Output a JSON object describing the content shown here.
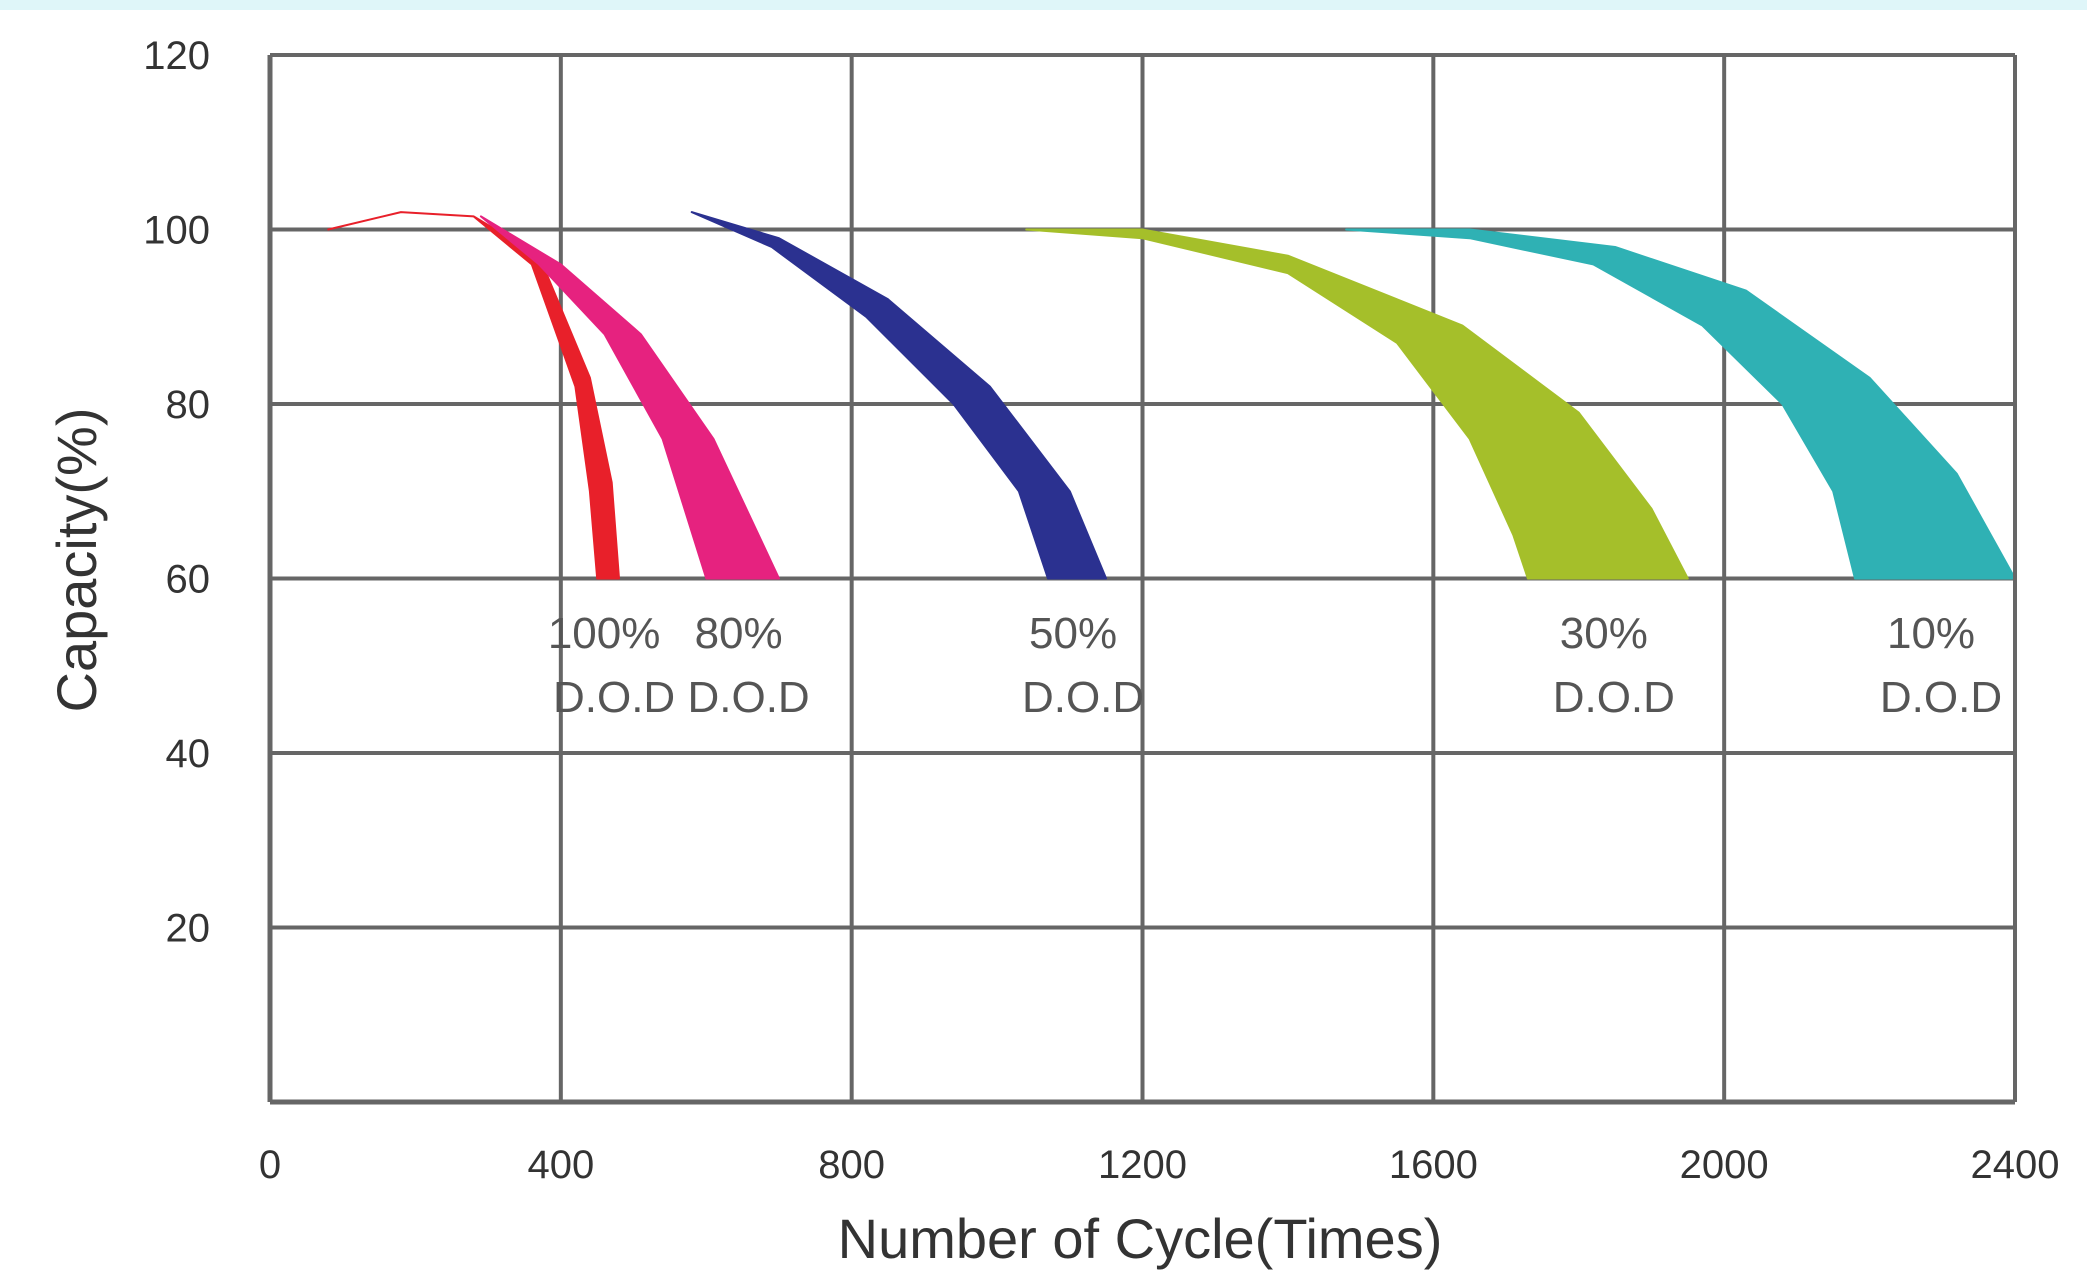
{
  "chart_data": {
    "type": "area",
    "title": "",
    "xlabel": "Number of Cycle(Times)",
    "ylabel": "Capacity(%)",
    "xlim": [
      0,
      2400
    ],
    "ylim": [
      0,
      120
    ],
    "x_ticks": [
      "0",
      "400",
      "800",
      "1200",
      "1600",
      "2000",
      "2400"
    ],
    "y_ticks": [
      "20",
      "40",
      "60",
      "80",
      "100",
      "120"
    ],
    "grid": true,
    "series": [
      {
        "name": "100% D.O.D",
        "line1": "100%",
        "line2": "D.O.D",
        "color": "#e8202a",
        "inner": [
          [
            80,
            100
          ],
          [
            180,
            102
          ],
          [
            280,
            101.5
          ],
          [
            360,
            96
          ],
          [
            420,
            82
          ],
          [
            440,
            70
          ],
          [
            450,
            60
          ]
        ],
        "outer": [
          [
            80,
            100
          ],
          [
            180,
            102
          ],
          [
            280,
            101.5
          ],
          [
            370,
            97
          ],
          [
            440,
            83
          ],
          [
            470,
            71
          ],
          [
            480,
            60
          ]
        ]
      },
      {
        "name": "80% D.O.D",
        "line1": "80%",
        "line2": "D.O.D",
        "color": "#e6227f",
        "inner": [
          [
            290,
            101.5
          ],
          [
            370,
            96
          ],
          [
            460,
            88
          ],
          [
            540,
            76
          ],
          [
            600,
            60
          ]
        ],
        "outer": [
          [
            290,
            101.5
          ],
          [
            400,
            96
          ],
          [
            510,
            88
          ],
          [
            610,
            76
          ],
          [
            700,
            60
          ]
        ]
      },
      {
        "name": "50% D.O.D",
        "line1": "50%",
        "line2": "D.O.D",
        "color": "#2b3190",
        "inner": [
          [
            580,
            102
          ],
          [
            690,
            98
          ],
          [
            820,
            90
          ],
          [
            940,
            80
          ],
          [
            1030,
            70
          ],
          [
            1070,
            60
          ]
        ],
        "outer": [
          [
            580,
            102
          ],
          [
            700,
            99
          ],
          [
            850,
            92
          ],
          [
            990,
            82
          ],
          [
            1100,
            70
          ],
          [
            1150,
            60
          ]
        ]
      },
      {
        "name": "30% D.O.D",
        "line1": "30%",
        "line2": "D.O.D",
        "color": "#a5bf2a",
        "inner": [
          [
            1040,
            100
          ],
          [
            1200,
            99
          ],
          [
            1400,
            95
          ],
          [
            1550,
            87
          ],
          [
            1650,
            76
          ],
          [
            1710,
            65
          ],
          [
            1730,
            60
          ]
        ],
        "outer": [
          [
            1040,
            100
          ],
          [
            1200,
            100
          ],
          [
            1400,
            97
          ],
          [
            1640,
            89
          ],
          [
            1800,
            79
          ],
          [
            1900,
            68
          ],
          [
            1950,
            60
          ]
        ]
      },
      {
        "name": "10% D.O.D",
        "line1": "10%",
        "line2": "D.O.D",
        "color": "#2fb1b4",
        "inner": [
          [
            1480,
            100
          ],
          [
            1650,
            99
          ],
          [
            1820,
            96
          ],
          [
            1970,
            89
          ],
          [
            2080,
            80
          ],
          [
            2150,
            70
          ],
          [
            2180,
            60
          ]
        ],
        "outer": [
          [
            1480,
            100
          ],
          [
            1650,
            100
          ],
          [
            1850,
            98
          ],
          [
            2030,
            93
          ],
          [
            2200,
            83
          ],
          [
            2320,
            72
          ],
          [
            2400,
            60
          ]
        ]
      }
    ]
  }
}
